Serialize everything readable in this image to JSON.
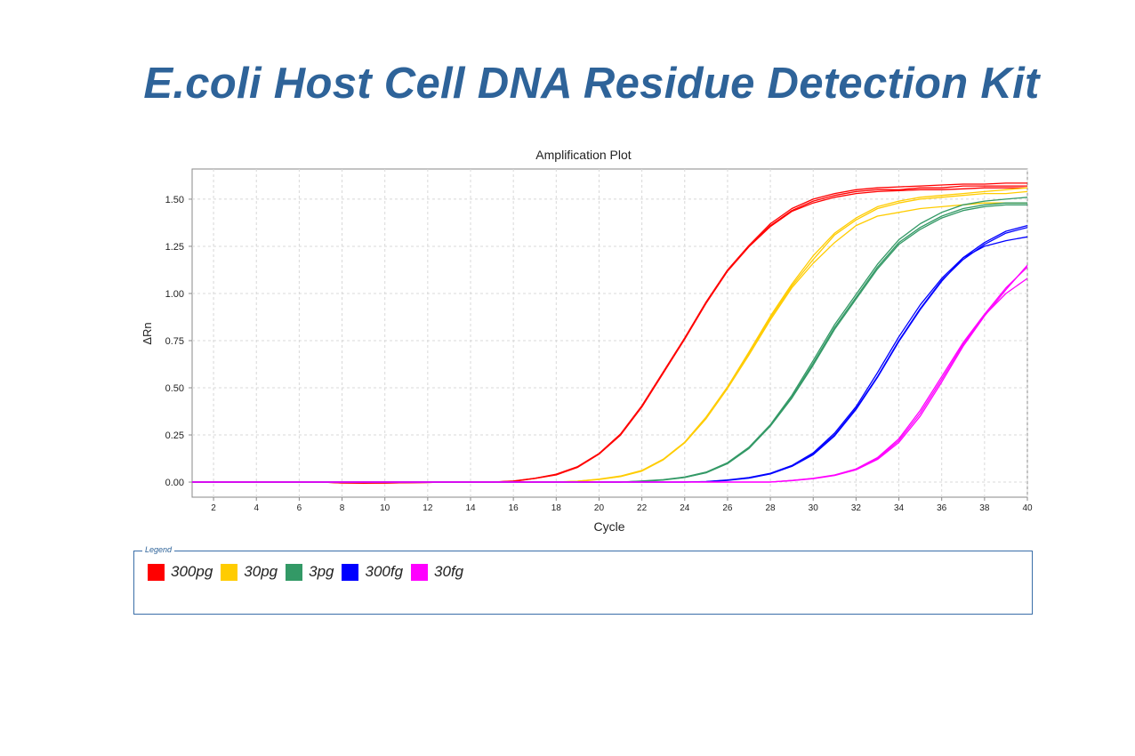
{
  "page": {
    "title": "E.coli Host Cell DNA Residue Detection Kit"
  },
  "legend": {
    "caption": "Legend"
  },
  "chart_data": {
    "type": "line",
    "title": "Amplification Plot",
    "xlabel": "Cycle",
    "ylabel": "ΔRn",
    "xlim": [
      1,
      40
    ],
    "ylim": [
      -0.08,
      1.66
    ],
    "xticks": [
      2,
      4,
      6,
      8,
      10,
      12,
      14,
      16,
      18,
      20,
      22,
      24,
      26,
      28,
      30,
      32,
      34,
      36,
      38,
      40
    ],
    "yticks": [
      0.0,
      0.25,
      0.5,
      0.75,
      1.0,
      1.25,
      1.5
    ],
    "ytick_labels": [
      "0.00",
      "0.25",
      "0.50",
      "0.75",
      "1.00",
      "1.25",
      "1.50"
    ],
    "grid": true,
    "legend_position": "below",
    "x": [
      1,
      2,
      3,
      4,
      5,
      6,
      7,
      8,
      9,
      10,
      11,
      12,
      13,
      14,
      15,
      16,
      17,
      18,
      19,
      20,
      21,
      22,
      23,
      24,
      25,
      26,
      27,
      28,
      29,
      30,
      31,
      32,
      33,
      34,
      35,
      36,
      37,
      38,
      39,
      40
    ],
    "series": [
      {
        "name": "300pg",
        "color": "#ff0000",
        "replicates": [
          [
            0,
            0,
            0,
            0,
            0,
            0,
            0,
            -0.005,
            -0.005,
            -0.005,
            -0.003,
            -0.002,
            0,
            0,
            0,
            0.005,
            0.02,
            0.04,
            0.08,
            0.15,
            0.25,
            0.4,
            0.58,
            0.76,
            0.95,
            1.12,
            1.25,
            1.36,
            1.44,
            1.49,
            1.52,
            1.54,
            1.55,
            1.55,
            1.56,
            1.56,
            1.57,
            1.57,
            1.57,
            1.57
          ],
          [
            0,
            0,
            0,
            0,
            0,
            0,
            0,
            -0.003,
            -0.004,
            -0.005,
            -0.003,
            -0.002,
            0,
            0,
            0,
            0.006,
            0.02,
            0.042,
            0.082,
            0.152,
            0.255,
            0.405,
            0.585,
            0.765,
            0.955,
            1.125,
            1.255,
            1.37,
            1.45,
            1.5,
            1.53,
            1.55,
            1.56,
            1.565,
            1.57,
            1.575,
            1.58,
            1.58,
            1.585,
            1.585
          ],
          [
            0,
            0,
            0,
            0,
            0,
            0,
            0,
            -0.004,
            -0.006,
            -0.004,
            -0.002,
            -0.001,
            0,
            0,
            0,
            0.004,
            0.019,
            0.038,
            0.078,
            0.148,
            0.248,
            0.398,
            0.578,
            0.758,
            0.948,
            1.118,
            1.248,
            1.355,
            1.435,
            1.48,
            1.51,
            1.53,
            1.54,
            1.545,
            1.55,
            1.55,
            1.555,
            1.56,
            1.56,
            1.56
          ]
        ]
      },
      {
        "name": "30pg",
        "color": "#ffcc00",
        "replicates": [
          [
            0,
            0,
            0,
            0,
            0,
            0,
            0,
            0,
            0,
            0,
            0,
            0,
            0,
            0,
            0,
            0,
            0,
            0,
            0.005,
            0.015,
            0.03,
            0.06,
            0.12,
            0.21,
            0.34,
            0.5,
            0.68,
            0.87,
            1.04,
            1.18,
            1.31,
            1.39,
            1.45,
            1.48,
            1.5,
            1.51,
            1.52,
            1.53,
            1.53,
            1.54
          ],
          [
            0,
            0,
            0,
            0,
            0,
            0,
            0,
            0,
            0,
            0,
            0,
            0,
            0,
            0,
            0,
            0,
            0,
            0,
            0.005,
            0.016,
            0.032,
            0.062,
            0.122,
            0.212,
            0.345,
            0.505,
            0.69,
            0.88,
            1.05,
            1.2,
            1.32,
            1.4,
            1.46,
            1.49,
            1.51,
            1.52,
            1.53,
            1.54,
            1.55,
            1.56
          ],
          [
            0,
            0,
            0,
            0,
            0,
            0,
            0,
            0,
            0,
            0,
            0,
            0,
            0,
            0,
            0,
            0,
            0,
            0,
            0.004,
            0.014,
            0.029,
            0.058,
            0.118,
            0.208,
            0.336,
            0.496,
            0.674,
            0.86,
            1.03,
            1.16,
            1.27,
            1.36,
            1.41,
            1.43,
            1.45,
            1.46,
            1.47,
            1.48,
            1.48,
            1.48
          ]
        ]
      },
      {
        "name": "3pg",
        "color": "#339966",
        "replicates": [
          [
            0,
            0,
            0,
            0,
            0,
            0,
            0,
            0,
            0,
            0,
            0,
            0,
            0,
            0,
            0,
            0,
            0,
            0,
            0,
            0,
            0,
            0.005,
            0.012,
            0.025,
            0.05,
            0.1,
            0.18,
            0.3,
            0.45,
            0.63,
            0.82,
            0.98,
            1.14,
            1.27,
            1.35,
            1.41,
            1.45,
            1.47,
            1.48,
            1.48
          ],
          [
            0,
            0,
            0,
            0,
            0,
            0,
            0,
            0,
            0,
            0,
            0,
            0,
            0,
            0,
            0,
            0,
            0,
            0,
            0,
            0,
            0,
            0.006,
            0.013,
            0.027,
            0.053,
            0.103,
            0.185,
            0.305,
            0.46,
            0.645,
            0.835,
            0.995,
            1.155,
            1.285,
            1.37,
            1.43,
            1.47,
            1.49,
            1.5,
            1.51
          ],
          [
            0,
            0,
            0,
            0,
            0,
            0,
            0,
            0,
            0,
            0,
            0,
            0,
            0,
            0,
            0,
            0,
            0,
            0,
            0,
            0,
            0,
            0.004,
            0.011,
            0.024,
            0.049,
            0.098,
            0.178,
            0.297,
            0.445,
            0.62,
            0.81,
            0.97,
            1.13,
            1.26,
            1.34,
            1.4,
            1.44,
            1.46,
            1.47,
            1.47
          ]
        ]
      },
      {
        "name": "300fg",
        "color": "#0000ff",
        "replicates": [
          [
            0,
            0,
            0,
            0,
            0,
            0,
            0,
            0,
            0,
            0,
            0,
            0,
            0,
            0,
            0,
            0,
            0,
            0,
            0,
            0,
            0,
            0,
            0,
            0,
            0.002,
            0.01,
            0.022,
            0.045,
            0.085,
            0.15,
            0.25,
            0.39,
            0.56,
            0.75,
            0.92,
            1.07,
            1.18,
            1.26,
            1.32,
            1.35
          ],
          [
            0,
            0,
            0,
            0,
            0,
            0,
            0,
            0,
            0,
            0,
            0,
            0,
            0,
            0,
            0,
            0,
            0,
            0,
            0,
            0,
            0,
            0,
            0,
            0,
            0.003,
            0.011,
            0.024,
            0.047,
            0.088,
            0.155,
            0.26,
            0.4,
            0.58,
            0.77,
            0.94,
            1.08,
            1.19,
            1.27,
            1.33,
            1.36
          ],
          [
            0,
            0,
            0,
            0,
            0,
            0,
            0,
            0,
            0,
            0,
            0,
            0,
            0,
            0,
            0,
            0,
            0,
            0,
            0,
            0,
            0,
            0,
            0,
            0,
            0.002,
            0.009,
            0.021,
            0.043,
            0.083,
            0.145,
            0.245,
            0.385,
            0.555,
            0.745,
            0.915,
            1.065,
            1.19,
            1.25,
            1.28,
            1.3
          ]
        ]
      },
      {
        "name": "30fg",
        "color": "#ff00ff",
        "replicates": [
          [
            0,
            0,
            0,
            0,
            0,
            0,
            0,
            0,
            0,
            0,
            0,
            0,
            0,
            0,
            0,
            0,
            0,
            0,
            0,
            0,
            0,
            0,
            0,
            0,
            0,
            0,
            0,
            0,
            0.008,
            0.018,
            0.035,
            0.065,
            0.12,
            0.21,
            0.35,
            0.53,
            0.72,
            0.88,
            1.02,
            1.15
          ],
          [
            0,
            0,
            0,
            0,
            0,
            0,
            0,
            0,
            0,
            0,
            0,
            0,
            0,
            0,
            0,
            0,
            0,
            0,
            0,
            0,
            0,
            0,
            0,
            0,
            0,
            0,
            0,
            0,
            0.009,
            0.02,
            0.038,
            0.07,
            0.13,
            0.23,
            0.38,
            0.56,
            0.74,
            0.89,
            1.03,
            1.14
          ],
          [
            0,
            0,
            0,
            0,
            0,
            0,
            0,
            0,
            0,
            0,
            0,
            0,
            0,
            0,
            0,
            0,
            0,
            0,
            0,
            0,
            0,
            0,
            0,
            0,
            0,
            0,
            0,
            0,
            0.008,
            0.019,
            0.036,
            0.067,
            0.125,
            0.22,
            0.365,
            0.545,
            0.73,
            0.885,
            1.0,
            1.08
          ]
        ]
      }
    ]
  }
}
